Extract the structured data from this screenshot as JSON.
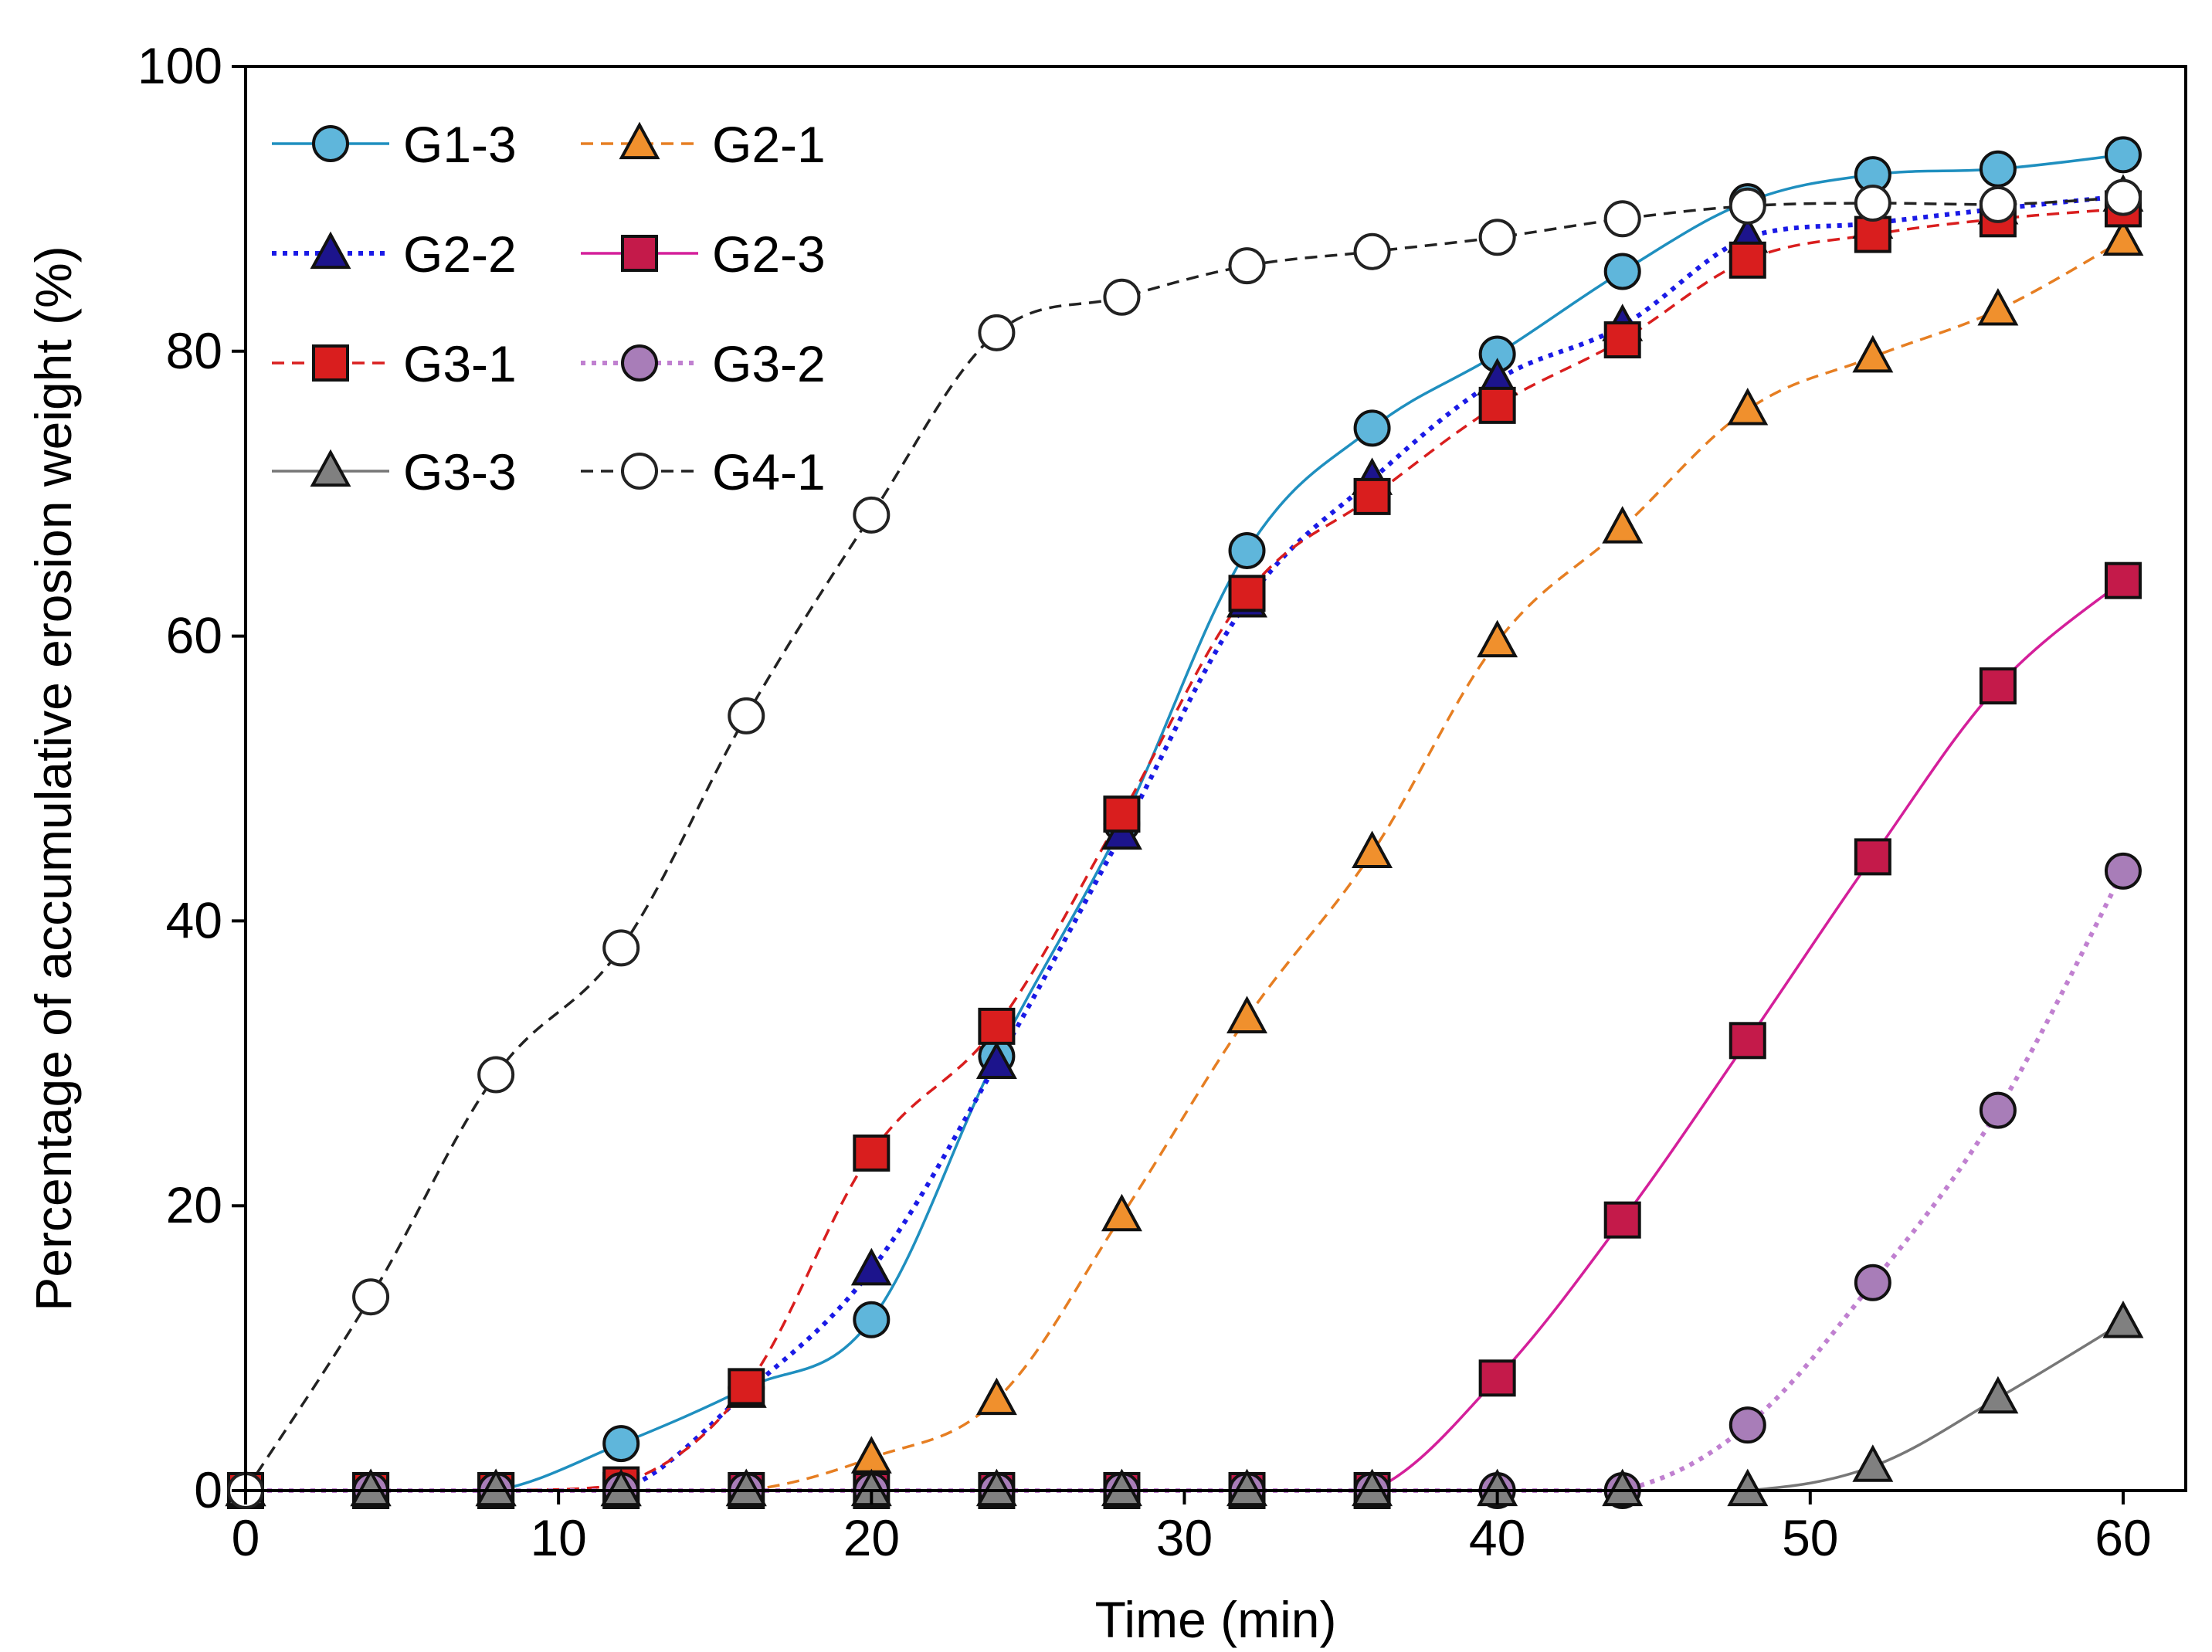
{
  "chart_data": {
    "type": "line",
    "title": "",
    "xlabel": "Time (min)",
    "ylabel": "Percentage of accumulative erosion weight (%)",
    "xlim": [
      0,
      62
    ],
    "ylim": [
      0,
      100
    ],
    "xticks": [
      0,
      10,
      20,
      30,
      40,
      50,
      60
    ],
    "yticks": [
      0,
      20,
      40,
      60,
      80,
      100
    ],
    "grid": false,
    "legend_position": "top-left",
    "series": [
      {
        "name": "G1-3",
        "color": "#1f8fbf",
        "fill": "#5fb6db",
        "marker": "circle",
        "dash": "solid",
        "x": [
          0,
          4,
          8,
          12,
          16,
          20,
          24,
          28,
          32,
          36,
          40,
          44,
          48,
          52,
          56,
          60
        ],
        "y": [
          0,
          0,
          0,
          3.3,
          7.2,
          12.0,
          30.5,
          46.8,
          66.0,
          74.6,
          79.8,
          85.6,
          90.5,
          92.4,
          92.8,
          93.8
        ]
      },
      {
        "name": "G2-1",
        "color": "#e67e22",
        "fill": "#f0902d",
        "marker": "triangle",
        "dash": "dashed",
        "x": [
          0,
          4,
          8,
          12,
          16,
          20,
          24,
          28,
          32,
          36,
          40,
          44,
          48,
          52,
          56,
          60
        ],
        "y": [
          0,
          0,
          0,
          0,
          0,
          2.3,
          6.4,
          19.3,
          33.2,
          44.8,
          59.6,
          67.6,
          75.9,
          79.6,
          82.9,
          87.8
        ]
      },
      {
        "name": "G2-2",
        "color": "#1a1ae6",
        "fill": "#1c148c",
        "marker": "triangle",
        "dash": "dotted",
        "x": [
          0,
          4,
          8,
          12,
          16,
          20,
          24,
          28,
          32,
          36,
          40,
          44,
          48,
          52,
          56,
          60
        ],
        "y": [
          0,
          0,
          0,
          0,
          6.9,
          15.5,
          30.0,
          46.1,
          62.4,
          71.0,
          78.0,
          81.8,
          88.0,
          89.0,
          90.0,
          90.9
        ]
      },
      {
        "name": "G2-3",
        "color": "#d41f9a",
        "fill": "#c41a4a",
        "marker": "square",
        "dash": "solid",
        "x": [
          0,
          4,
          8,
          12,
          16,
          20,
          24,
          28,
          32,
          36,
          40,
          44,
          48,
          52,
          56,
          60
        ],
        "y": [
          0,
          0,
          0,
          0,
          0,
          0,
          0,
          0,
          0,
          0,
          7.9,
          19.0,
          31.6,
          44.5,
          56.5,
          63.9
        ]
      },
      {
        "name": "G3-1",
        "color": "#d91e1e",
        "fill": "#d91e1e",
        "marker": "square",
        "dash": "dashed",
        "x": [
          0,
          4,
          8,
          12,
          16,
          20,
          24,
          28,
          32,
          36,
          40,
          44,
          48,
          52,
          56,
          60
        ],
        "y": [
          0,
          0,
          0,
          0.4,
          7.3,
          23.7,
          32.6,
          47.5,
          63.0,
          69.8,
          76.2,
          80.8,
          86.4,
          88.2,
          89.3,
          90.0
        ]
      },
      {
        "name": "G3-2",
        "color": "#c080d0",
        "fill": "#a87db8",
        "marker": "circle",
        "dash": "dotted",
        "x": [
          0,
          4,
          8,
          12,
          16,
          20,
          24,
          28,
          32,
          36,
          40,
          44,
          48,
          52,
          56,
          60
        ],
        "y": [
          0,
          0,
          0,
          0,
          0,
          0,
          0,
          0,
          0,
          0,
          0,
          0,
          4.6,
          14.6,
          26.7,
          43.5
        ]
      },
      {
        "name": "G3-3",
        "color": "#777777",
        "fill": "#808080",
        "marker": "triangle",
        "dash": "solid",
        "x": [
          0,
          4,
          8,
          12,
          16,
          20,
          24,
          28,
          32,
          36,
          40,
          44,
          48,
          52,
          56,
          60
        ],
        "y": [
          0,
          0,
          0,
          0,
          0,
          0,
          0,
          0,
          0,
          0,
          0,
          0,
          0,
          1.7,
          6.5,
          11.8
        ]
      },
      {
        "name": "G4-1",
        "color": "#222222",
        "fill": "#ffffff",
        "marker": "circle",
        "dash": "dashed",
        "x": [
          0,
          4,
          8,
          12,
          16,
          20,
          24,
          28,
          32,
          36,
          40,
          44,
          48,
          52,
          56,
          60
        ],
        "y": [
          0,
          13.6,
          29.2,
          38.1,
          54.4,
          68.5,
          81.3,
          83.8,
          86.0,
          87.0,
          88.0,
          89.3,
          90.2,
          90.4,
          90.3,
          90.8
        ]
      }
    ]
  }
}
